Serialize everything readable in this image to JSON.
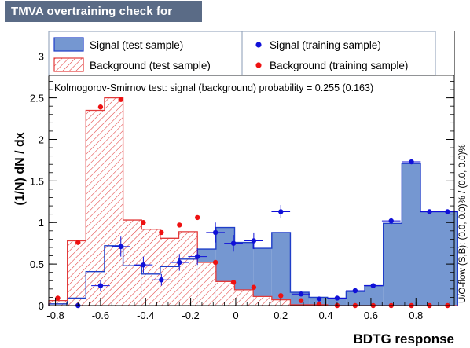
{
  "title": "TMVA overtraining check for classifier: BDTG",
  "ks_text": "Kolmogorov-Smirnov test: signal (background) probability = 0.255 (0.163)",
  "side_text": "U/O-flow (S,B): (0.0, 0.0)% / (0.0, 0.0)%",
  "legend": {
    "signal_test": "Signal (test sample)",
    "background_test": "Background (test sample)",
    "signal_train": "Signal (training sample)",
    "background_train": "Background (training sample)"
  },
  "colors": {
    "signal_fill": "#7597d1",
    "signal_line": "#1f3ec8",
    "background_hatch": "#e23a3a",
    "signal_marker": "#1010d8",
    "background_marker": "#ee1111",
    "title_bar": "#5a6b86"
  },
  "chart_data": {
    "type": "histogram",
    "xlabel": "BDTG response",
    "ylabel": "(1/N) dN / dx",
    "xlim": [
      -0.83,
      0.97
    ],
    "ylim": [
      0,
      3.3
    ],
    "x_ticks": [
      -0.8,
      -0.6,
      -0.4,
      -0.2,
      0,
      0.2,
      0.4,
      0.6,
      0.8
    ],
    "y_ticks": [
      0,
      0.5,
      1,
      1.5,
      2,
      2.5,
      3
    ],
    "bin_edges": [
      -0.83,
      -0.7475,
      -0.665,
      -0.5825,
      -0.5,
      -0.4175,
      -0.335,
      -0.2525,
      -0.17,
      -0.0875,
      -0.005,
      0.0775,
      0.16,
      0.2425,
      0.325,
      0.4075,
      0.49,
      0.5725,
      0.655,
      0.7375,
      0.82,
      0.9025,
      0.985
    ],
    "series": [
      {
        "name": "Signal (test sample)",
        "style": "filled histogram",
        "values": [
          0.02,
          0.09,
          0.41,
          0.72,
          0.48,
          0.38,
          0.47,
          0.56,
          0.68,
          0.94,
          0.76,
          0.69,
          0.88,
          0.16,
          0.1,
          0.09,
          0.17,
          0.24,
          0.99,
          1.71,
          1.13,
          1.13
        ]
      },
      {
        "name": "Background (test sample)",
        "style": "hatched histogram",
        "values": [
          0.06,
          0.78,
          2.35,
          2.5,
          1.03,
          0.92,
          0.81,
          0.89,
          0.52,
          0.29,
          0.19,
          0.11,
          0.07,
          0.01,
          0.01,
          0.0,
          0.0,
          0.0,
          0.0,
          0.0,
          0.0,
          0.0
        ]
      },
      {
        "name": "Signal (training sample)",
        "style": "markers with error bars",
        "x": [
          -0.7,
          -0.6,
          -0.51,
          -0.41,
          -0.33,
          -0.25,
          -0.17,
          -0.09,
          -0.01,
          0.08,
          0.2,
          0.29,
          0.37,
          0.45,
          0.53,
          0.61,
          0.69,
          0.78,
          0.86,
          0.94
        ],
        "y": [
          0.0,
          0.24,
          0.71,
          0.49,
          0.31,
          0.52,
          0.59,
          0.88,
          0.75,
          0.78,
          1.13,
          0.14,
          0.08,
          0.09,
          0.18,
          0.24,
          1.02,
          1.73,
          1.13,
          1.13
        ],
        "yerr": [
          0.02,
          0.07,
          0.12,
          0.1,
          0.07,
          0.1,
          0.1,
          0.12,
          0.1,
          0.1,
          0.08,
          0.03,
          0.02,
          0.02,
          0.03,
          0.03,
          0.04,
          0.02,
          0.02,
          0.02
        ]
      },
      {
        "name": "Background (training sample)",
        "style": "markers",
        "x": [
          -0.79,
          -0.7,
          -0.6,
          -0.51,
          -0.41,
          -0.33,
          -0.25,
          -0.17,
          -0.09,
          -0.01,
          0.08,
          0.2,
          0.29,
          0.37,
          0.45,
          0.53,
          0.61,
          0.69,
          0.78,
          0.86,
          0.94
        ],
        "y": [
          0.09,
          0.76,
          2.39,
          2.48,
          1.0,
          0.88,
          0.97,
          1.06,
          0.52,
          0.28,
          0.22,
          0.12,
          0.06,
          0.02,
          0.0,
          0.0,
          0.0,
          0.0,
          0.0,
          0.0,
          0.0
        ]
      }
    ]
  }
}
